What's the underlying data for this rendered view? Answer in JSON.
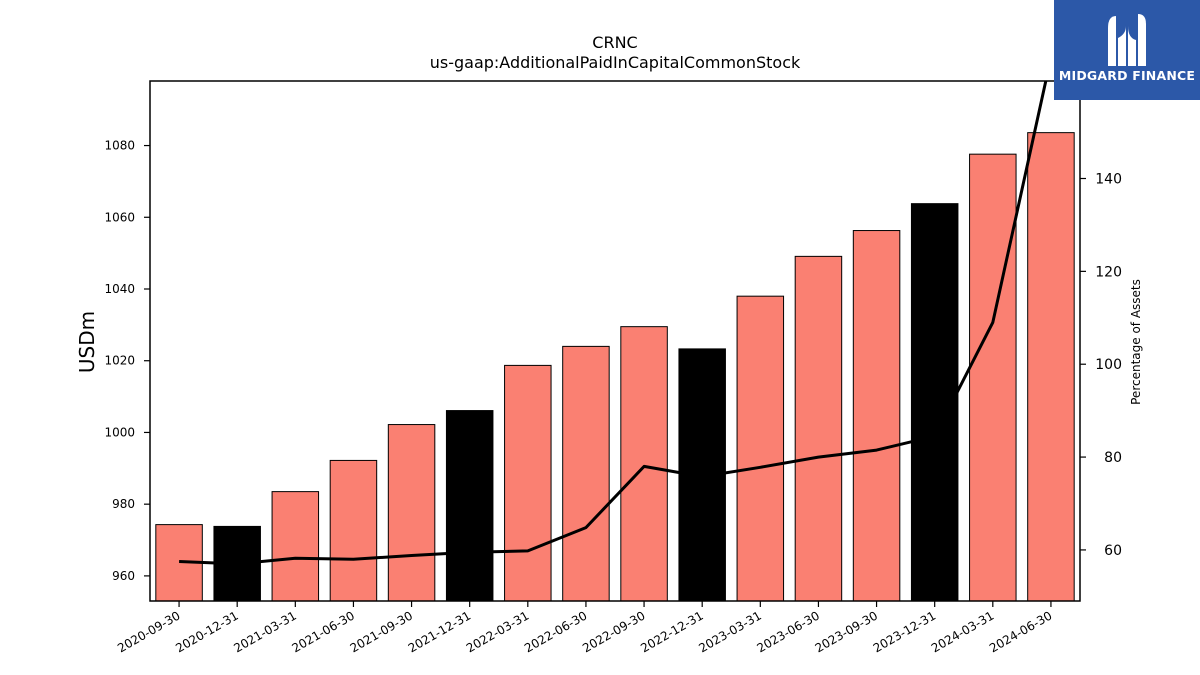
{
  "chart_data": {
    "type": "bar",
    "title": "CRNC",
    "subtitle": "us-gaap:AdditionalPaidInCapitalCommonStock",
    "ylabel": "USDm",
    "y2label": "Percentage of Assets",
    "categories": [
      "2020-09-30",
      "2020-12-31",
      "2021-03-31",
      "2021-06-30",
      "2021-09-30",
      "2021-12-31",
      "2022-03-31",
      "2022-06-30",
      "2022-09-30",
      "2022-12-31",
      "2023-03-31",
      "2023-06-30",
      "2023-09-30",
      "2023-12-31",
      "2024-03-31",
      "2024-06-30"
    ],
    "series": [
      {
        "type": "bar",
        "axis": "left",
        "values": [
          974.3,
          973.8,
          983.5,
          992.2,
          1002.2,
          1006.1,
          1018.7,
          1024.0,
          1029.5,
          1023.3,
          1038.0,
          1049.1,
          1056.3,
          1063.8,
          1077.6,
          1083.6
        ],
        "colors": [
          "#fa8072",
          "#000000",
          "#fa8072",
          "#fa8072",
          "#fa8072",
          "#000000",
          "#fa8072",
          "#fa8072",
          "#fa8072",
          "#000000",
          "#fa8072",
          "#fa8072",
          "#fa8072",
          "#000000",
          "#fa8072",
          "#fa8072"
        ]
      },
      {
        "type": "line",
        "axis": "right",
        "color": "#000000",
        "values": [
          57.5,
          57.0,
          58.2,
          58.0,
          58.8,
          59.5,
          59.8,
          64.8,
          78.0,
          75.8,
          77.8,
          80.0,
          81.5,
          84.5,
          109.0,
          166.0
        ]
      }
    ],
    "ylim": [
      953,
      1098
    ],
    "y2lim": [
      49,
      161
    ],
    "yticks": [
      960,
      980,
      1000,
      1020,
      1040,
      1060,
      1080
    ],
    "y2ticks": [
      60,
      80,
      100,
      120,
      140
    ],
    "grid": false
  },
  "logo": {
    "text": "MIDGARD FINANCE",
    "background": "#2c58a8"
  }
}
